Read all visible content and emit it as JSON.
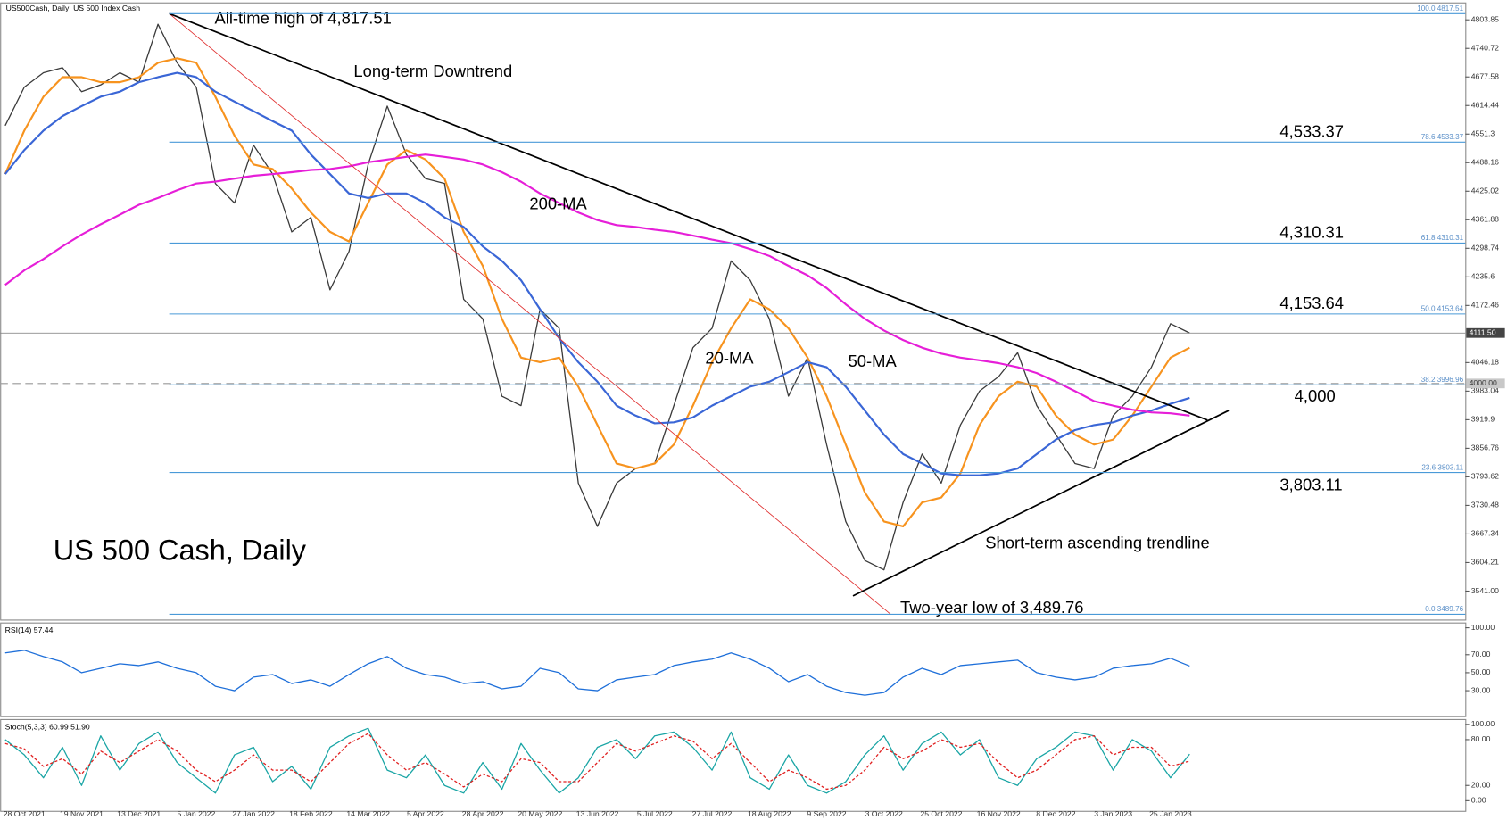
{
  "chart_data": [
    {
      "type": "line",
      "title": "US500Cash, Daily: US 500 Index Cash",
      "subtitle": "US 500 Cash, Daily",
      "categories": [
        null,
        "28 Oct 2021",
        null,
        null,
        "19 Nov 2021",
        null,
        null,
        "13 Dec 2021",
        null,
        null,
        "5 Jan 2022",
        null,
        null,
        "27 Jan 2022",
        null,
        null,
        "18 Feb 2022",
        null,
        null,
        "14 Mar 2022",
        null,
        null,
        "5 Apr 2022",
        null,
        null,
        "28 Apr 2022",
        null,
        null,
        "20 May 2022",
        null,
        null,
        "13 Jun 2022",
        null,
        null,
        "5 Jul 2022",
        null,
        null,
        "27 Jul 2022",
        null,
        null,
        "18 Aug 2022",
        null,
        null,
        "9 Sep 2022",
        null,
        null,
        "3 Oct 2022",
        null,
        null,
        "25 Oct 2022",
        null,
        null,
        "16 Nov 2022",
        null,
        null,
        "8 Dec 2022",
        null,
        null,
        "3 Jan 2023",
        null,
        null,
        "25 Jan 2023",
        null
      ],
      "series": [
        {
          "color": "#3a3a3a",
          "values": [
            4570,
            4655,
            4687,
            4698,
            4645,
            4660,
            4687,
            4666,
            4794,
            4709,
            4655,
            4442,
            4399,
            4527,
            4463,
            4335,
            4367,
            4207,
            4292,
            4484,
            4613,
            4506,
            4453,
            4442,
            4186,
            4143,
            3972,
            3951,
            4164,
            4122,
            3780,
            3684,
            3780,
            3812,
            3823,
            3951,
            4079,
            4122,
            4271,
            4228,
            4143,
            3972,
            4057,
            3865,
            3695,
            3609,
            3588,
            3737,
            3844,
            3780,
            3908,
            3983,
            4015,
            4068,
            3951,
            3887,
            3823,
            3812,
            3929,
            3972,
            4036,
            4132,
            4111.5
          ]
        },
        {
          "name": "20-MA",
          "color": "#f7931e",
          "values": [
            4463,
            4559,
            4634,
            4677,
            4677,
            4666,
            4666,
            4677,
            4709,
            4719,
            4709,
            4634,
            4548,
            4484,
            4474,
            4431,
            4378,
            4335,
            4314,
            4399,
            4484,
            4516,
            4495,
            4453,
            4335,
            4260,
            4143,
            4057,
            4047,
            4057,
            3993,
            3908,
            3823,
            3812,
            3823,
            3865,
            3951,
            4047,
            4122,
            4186,
            4164,
            4122,
            4057,
            3972,
            3865,
            3759,
            3695,
            3684,
            3737,
            3748,
            3801,
            3908,
            3972,
            4004,
            3993,
            3929,
            3887,
            3865,
            3876,
            3929,
            3993,
            4057,
            4079
          ]
        },
        {
          "name": "50-MA",
          "color": "#3a66d6",
          "values": [
            4463,
            4516,
            4559,
            4591,
            4613,
            4634,
            4645,
            4666,
            4677,
            4687,
            4677,
            4645,
            4623,
            4602,
            4580,
            4559,
            4506,
            4463,
            4420,
            4410,
            4420,
            4420,
            4399,
            4367,
            4346,
            4303,
            4271,
            4228,
            4164,
            4100,
            4047,
            4004,
            3951,
            3929,
            3912,
            3914,
            3925,
            3951,
            3972,
            3993,
            4004,
            4025,
            4047,
            4036,
            3993,
            3940,
            3887,
            3844,
            3823,
            3801,
            3797,
            3797,
            3801,
            3812,
            3844,
            3876,
            3897,
            3908,
            3914,
            3929,
            3940,
            3955,
            3968
          ]
        },
        {
          "name": "200-MA",
          "color": "#e61ed8",
          "values": [
            4218,
            4250,
            4275,
            4303,
            4329,
            4352,
            4373,
            4395,
            4410,
            4427,
            4442,
            4446,
            4453,
            4459,
            4463,
            4467,
            4472,
            4474,
            4480,
            4489,
            4495,
            4501,
            4506,
            4501,
            4495,
            4484,
            4467,
            4446,
            4420,
            4399,
            4378,
            4361,
            4350,
            4346,
            4340,
            4335,
            4327,
            4318,
            4310,
            4297,
            4282,
            4260,
            4239,
            4211,
            4175,
            4143,
            4117,
            4096,
            4079,
            4066,
            4057,
            4051,
            4045,
            4036,
            4023,
            4004,
            3983,
            3961,
            3951,
            3942,
            3936,
            3934,
            3929
          ]
        }
      ],
      "ylim": [
        3477,
        4837
      ],
      "yticks": [
        4803.85,
        4740.72,
        4677.58,
        4614.44,
        4551.3,
        4488.16,
        4425.02,
        4361.88,
        4298.74,
        4235.6,
        4172.46,
        4046.18,
        3983.04,
        3919.9,
        3856.76,
        3793.62,
        3730.48,
        3667.34,
        3604.21,
        {
          "value": 3541,
          "label": "3541.00"
        }
      ],
      "fib_levels": [
        {
          "value": 4817.51,
          "label": "100.0 4817.51"
        },
        {
          "value": 4533.37,
          "label": "78.6 4533.37",
          "callout": "4,533.37"
        },
        {
          "value": 4310.31,
          "label": "61.8 4310.31",
          "callout": "4,310.31"
        },
        {
          "value": 4153.64,
          "label": "50.0 4153.64",
          "callout": "4,153.64"
        },
        {
          "value": 3996.96,
          "label": "38.2 3996.96"
        },
        {
          "value": 3803.11,
          "label": "23.6 3803.11",
          "callout": "3,803.11"
        },
        {
          "value": 3489.76,
          "label": "0.0 3489.76"
        }
      ],
      "level_4000": {
        "value": 4000,
        "label": "4000.00",
        "callout": "4,000"
      },
      "last_price": {
        "value": 4111.5,
        "label": "4111.50"
      },
      "annotations": [
        "All-time high of 4,817.51",
        "Long-term Downtrend",
        "Short-term ascending trendline",
        "Two-year low of 3,489.76"
      ]
    },
    {
      "type": "line",
      "title": "RSI(14) 57.44",
      "series": [
        {
          "color": "#1e6fd9",
          "values": [
            72,
            75,
            68,
            62,
            50,
            55,
            60,
            58,
            62,
            55,
            50,
            35,
            30,
            45,
            48,
            38,
            42,
            35,
            48,
            60,
            68,
            55,
            48,
            45,
            38,
            40,
            32,
            35,
            55,
            50,
            32,
            30,
            42,
            45,
            48,
            58,
            62,
            65,
            72,
            65,
            55,
            40,
            48,
            35,
            28,
            25,
            28,
            45,
            55,
            48,
            58,
            60,
            62,
            64,
            50,
            45,
            42,
            45,
            55,
            58,
            60,
            66,
            57.44
          ]
        }
      ],
      "ylim": [
        0,
        100
      ],
      "yticks": [
        {
          "value": 100,
          "label": "100.00"
        },
        {
          "value": 70,
          "label": "70.00"
        },
        {
          "value": 50,
          "label": "50.00"
        },
        {
          "value": 30,
          "label": "30.00"
        }
      ]
    },
    {
      "type": "line",
      "title": "Stoch(5,3,3) 60.99 51.90",
      "series": [
        {
          "color": "#1aa5a5",
          "values": [
            80,
            60,
            30,
            70,
            20,
            85,
            40,
            75,
            90,
            50,
            30,
            10,
            60,
            70,
            25,
            45,
            15,
            70,
            85,
            95,
            40,
            30,
            60,
            20,
            10,
            50,
            15,
            75,
            40,
            10,
            30,
            70,
            80,
            55,
            85,
            90,
            70,
            40,
            90,
            30,
            15,
            60,
            20,
            10,
            25,
            60,
            85,
            40,
            75,
            90,
            60,
            80,
            30,
            20,
            55,
            70,
            90,
            85,
            40,
            80,
            65,
            30,
            60.99
          ]
        },
        {
          "color": "#e02020",
          "dashed": true,
          "values": [
            75,
            68,
            45,
            55,
            35,
            65,
            50,
            65,
            80,
            65,
            40,
            25,
            40,
            60,
            40,
            40,
            25,
            50,
            75,
            88,
            60,
            40,
            50,
            35,
            18,
            35,
            25,
            55,
            50,
            25,
            25,
            50,
            75,
            65,
            75,
            85,
            78,
            55,
            75,
            50,
            25,
            40,
            30,
            15,
            20,
            40,
            70,
            55,
            65,
            80,
            70,
            75,
            50,
            30,
            40,
            60,
            80,
            85,
            60,
            70,
            70,
            45,
            51.9
          ]
        }
      ],
      "ylim": [
        0,
        100
      ],
      "yticks": [
        {
          "value": 100,
          "label": "100.00"
        },
        {
          "value": 80,
          "label": "80.00"
        },
        {
          "value": 20,
          "label": "20.00"
        },
        {
          "value": 0,
          "label": "0.00"
        }
      ]
    }
  ]
}
